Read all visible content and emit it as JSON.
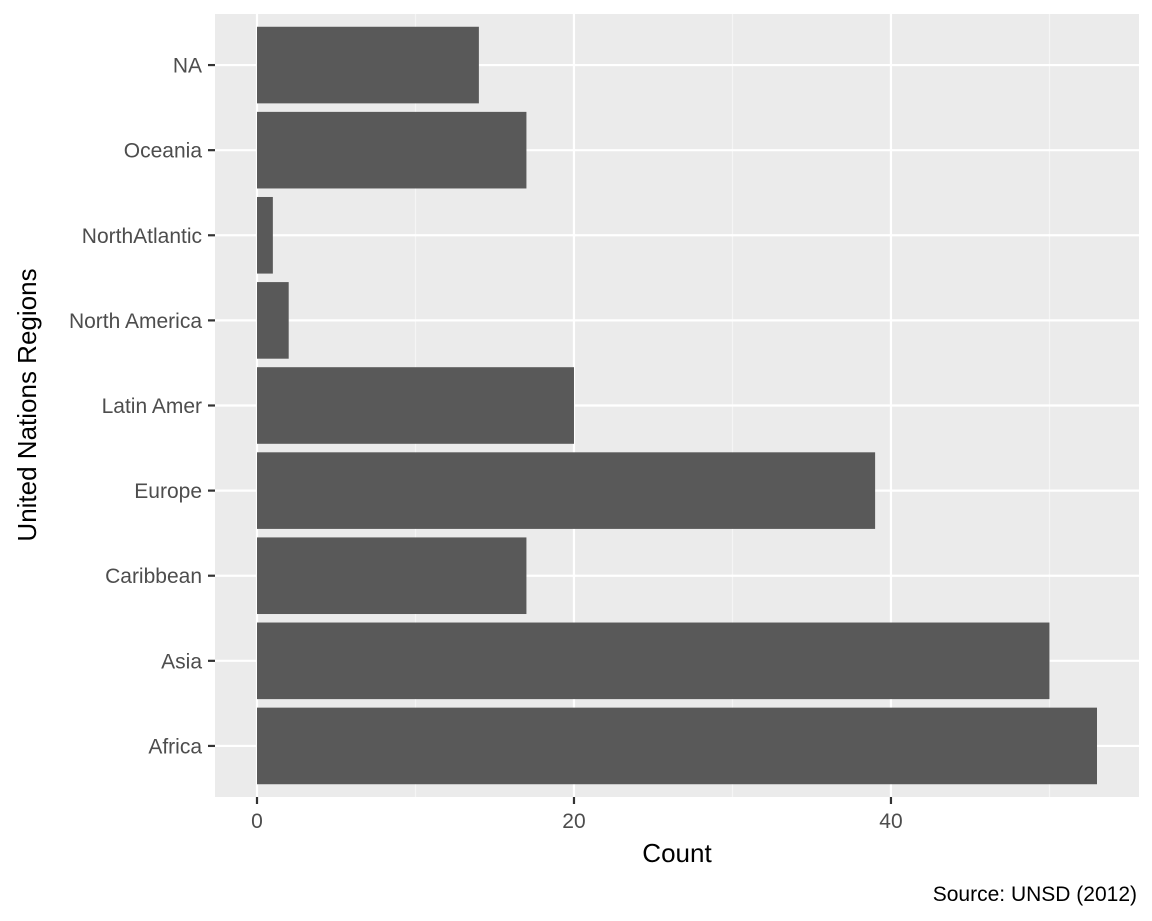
{
  "chart_data": {
    "type": "bar",
    "orientation": "horizontal",
    "categories": [
      "Africa",
      "Asia",
      "Caribbean",
      "Europe",
      "Latin Amer",
      "North America",
      "NorthAtlantic",
      "Oceania",
      "NA"
    ],
    "values": [
      53,
      50,
      17,
      39,
      20,
      2,
      1,
      17,
      14
    ],
    "xlabel": "Count",
    "ylabel": "United Nations Regions",
    "xlim": [
      -2.65,
      55.65
    ],
    "x_ticks": [
      0,
      20,
      40
    ],
    "caption": "Source: UNSD (2012)",
    "grid": true,
    "legend": "none",
    "colors": {
      "bar": "#595959",
      "panel": "#ebebeb",
      "grid_major": "#ffffff",
      "grid_minor": "#f5f5f5",
      "tick_text": "#4d4d4d"
    }
  }
}
